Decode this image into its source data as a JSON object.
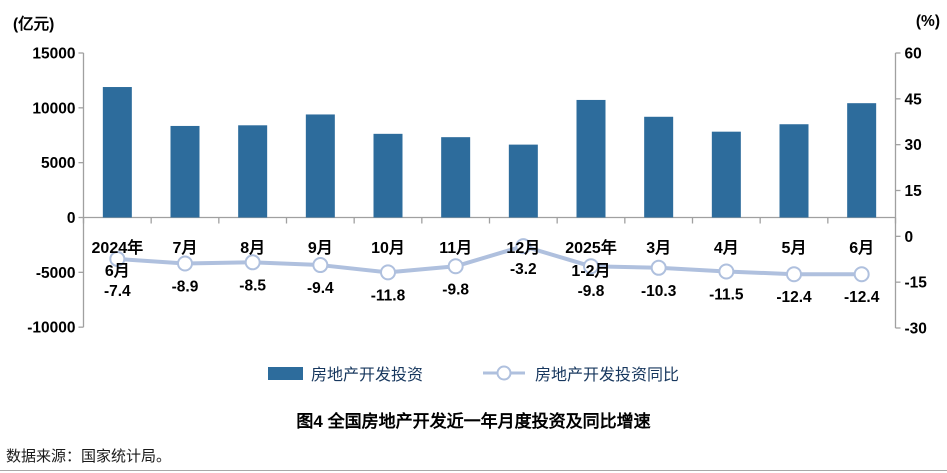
{
  "chart_data": {
    "type": "bar+line",
    "title": "图4 全国房地产开发近一年月度投资及同比增速",
    "categories": [
      [
        "2024年",
        "6月"
      ],
      [
        "7月"
      ],
      [
        "8月"
      ],
      [
        "9月"
      ],
      [
        "10月"
      ],
      [
        "11月"
      ],
      [
        "12月"
      ],
      [
        "2025年",
        "1-2月"
      ],
      [
        "3月"
      ],
      [
        "4月"
      ],
      [
        "5月"
      ],
      [
        "6月"
      ]
    ],
    "series": [
      {
        "name": "房地产开发投资",
        "type": "bar",
        "axis": "left",
        "unit": "亿元",
        "color": "#2D6C9C",
        "values": [
          11897,
          8348,
          8407,
          9396,
          7629,
          7325,
          6646,
          10720,
          9184,
          7826,
          8504,
          10424
        ]
      },
      {
        "name": "房地产开发投资同比",
        "type": "line",
        "axis": "right",
        "unit": "%",
        "color": "#AFC0DE",
        "marker_fill": "#FFFFFF",
        "data_labels": true,
        "values": [
          -7.4,
          -8.9,
          -8.5,
          -9.4,
          -11.8,
          -9.8,
          -3.2,
          -9.8,
          -10.3,
          -11.5,
          -12.4,
          -12.4
        ]
      }
    ],
    "left_axis": {
      "label": "(亿元)",
      "max": 15000,
      "min": -10000,
      "ticks": [
        15000,
        10000,
        5000,
        0,
        -5000,
        -10000
      ]
    },
    "right_axis": {
      "label": "(%)",
      "max": 60,
      "min": -30,
      "ticks": [
        60,
        45,
        30,
        15,
        0,
        -15,
        -30
      ]
    },
    "legend": {
      "position": "bottom",
      "items": [
        "房地产开发投资",
        "房地产开发投资同比"
      ]
    },
    "grid": "off"
  },
  "footer": {
    "source_note": "数据来源：国家统计局。"
  },
  "colors": {
    "bar": "#2D6C9C",
    "line": "#AFC0DE",
    "marker_fill": "#FFFFFF",
    "axis": "#A0A0A0",
    "text": "#000000",
    "legend_text": "#17375E"
  }
}
